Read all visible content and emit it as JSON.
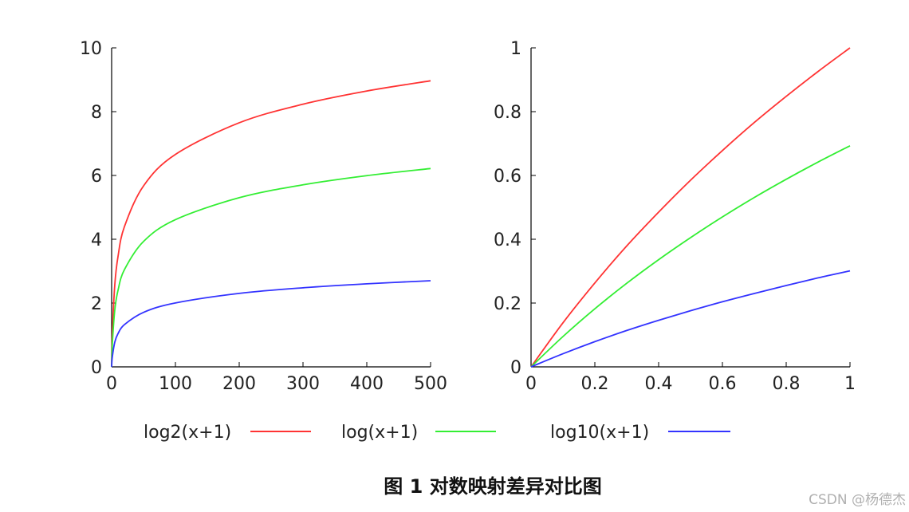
{
  "chart_data": [
    {
      "type": "line",
      "xlim": [
        0,
        500
      ],
      "ylim": [
        0,
        10
      ],
      "x_ticks": [
        0,
        100,
        200,
        300,
        400,
        500
      ],
      "y_ticks": [
        0,
        2,
        4,
        6,
        8,
        10
      ],
      "x_tick_labels": [
        "0",
        "100",
        "200",
        "300",
        "400",
        "500"
      ],
      "y_tick_labels": [
        "0",
        "2",
        "4",
        "6",
        "8",
        "10"
      ],
      "grid": false,
      "series": [
        {
          "name": "log2(x+1)",
          "color": "#ff3333",
          "x": [
            0,
            1,
            5,
            10,
            20,
            50,
            100,
            200,
            300,
            400,
            500
          ],
          "y": [
            0,
            1,
            2.585,
            3.459,
            4.392,
            5.672,
            6.658,
            7.651,
            8.234,
            8.647,
            8.967
          ]
        },
        {
          "name": "log(x+1)",
          "color": "#33ee33",
          "x": [
            0,
            1,
            5,
            10,
            20,
            50,
            100,
            200,
            300,
            400,
            500
          ],
          "y": [
            0,
            0.693,
            1.792,
            2.398,
            3.045,
            3.932,
            4.615,
            5.303,
            5.707,
            5.994,
            6.217
          ]
        },
        {
          "name": "log10(x+1)",
          "color": "#3333ff",
          "x": [
            0,
            1,
            5,
            10,
            20,
            50,
            100,
            200,
            300,
            400,
            500
          ],
          "y": [
            0,
            0.301,
            0.778,
            1.041,
            1.322,
            1.708,
            2.004,
            2.303,
            2.479,
            2.603,
            2.7
          ]
        }
      ]
    },
    {
      "type": "line",
      "xlim": [
        0,
        1
      ],
      "ylim": [
        0,
        1
      ],
      "x_ticks": [
        0,
        0.2,
        0.4,
        0.6,
        0.8,
        1
      ],
      "y_ticks": [
        0,
        0.2,
        0.4,
        0.6,
        0.8,
        1
      ],
      "x_tick_labels": [
        "0",
        "0.2",
        "0.4",
        "0.6",
        "0.8",
        "1"
      ],
      "y_tick_labels": [
        "0",
        "0.2",
        "0.4",
        "0.6",
        "0.8",
        "1"
      ],
      "grid": false,
      "series": [
        {
          "name": "log2(x+1)",
          "color": "#ff3333",
          "x": [
            0,
            0.1,
            0.2,
            0.3,
            0.4,
            0.5,
            0.6,
            0.7,
            0.8,
            0.9,
            1
          ],
          "y": [
            0,
            0.138,
            0.263,
            0.379,
            0.485,
            0.585,
            0.678,
            0.766,
            0.848,
            0.926,
            1.0
          ]
        },
        {
          "name": "log(x+1)",
          "color": "#33ee33",
          "x": [
            0,
            0.1,
            0.2,
            0.3,
            0.4,
            0.5,
            0.6,
            0.7,
            0.8,
            0.9,
            1
          ],
          "y": [
            0,
            0.095,
            0.182,
            0.262,
            0.336,
            0.405,
            0.47,
            0.531,
            0.588,
            0.642,
            0.693
          ]
        },
        {
          "name": "log10(x+1)",
          "color": "#3333ff",
          "x": [
            0,
            0.1,
            0.2,
            0.3,
            0.4,
            0.5,
            0.6,
            0.7,
            0.8,
            0.9,
            1
          ],
          "y": [
            0,
            0.041,
            0.079,
            0.114,
            0.146,
            0.176,
            0.204,
            0.23,
            0.255,
            0.279,
            0.301
          ]
        }
      ]
    }
  ],
  "legend": [
    {
      "label": "log2(x+1)",
      "color": "#ff3333"
    },
    {
      "label": "log(x+1)",
      "color": "#33ee33"
    },
    {
      "label": "log10(x+1)",
      "color": "#3333ff"
    }
  ],
  "caption": "图 1  对数映射差异对比图",
  "watermark": "CSDN @杨德杰"
}
